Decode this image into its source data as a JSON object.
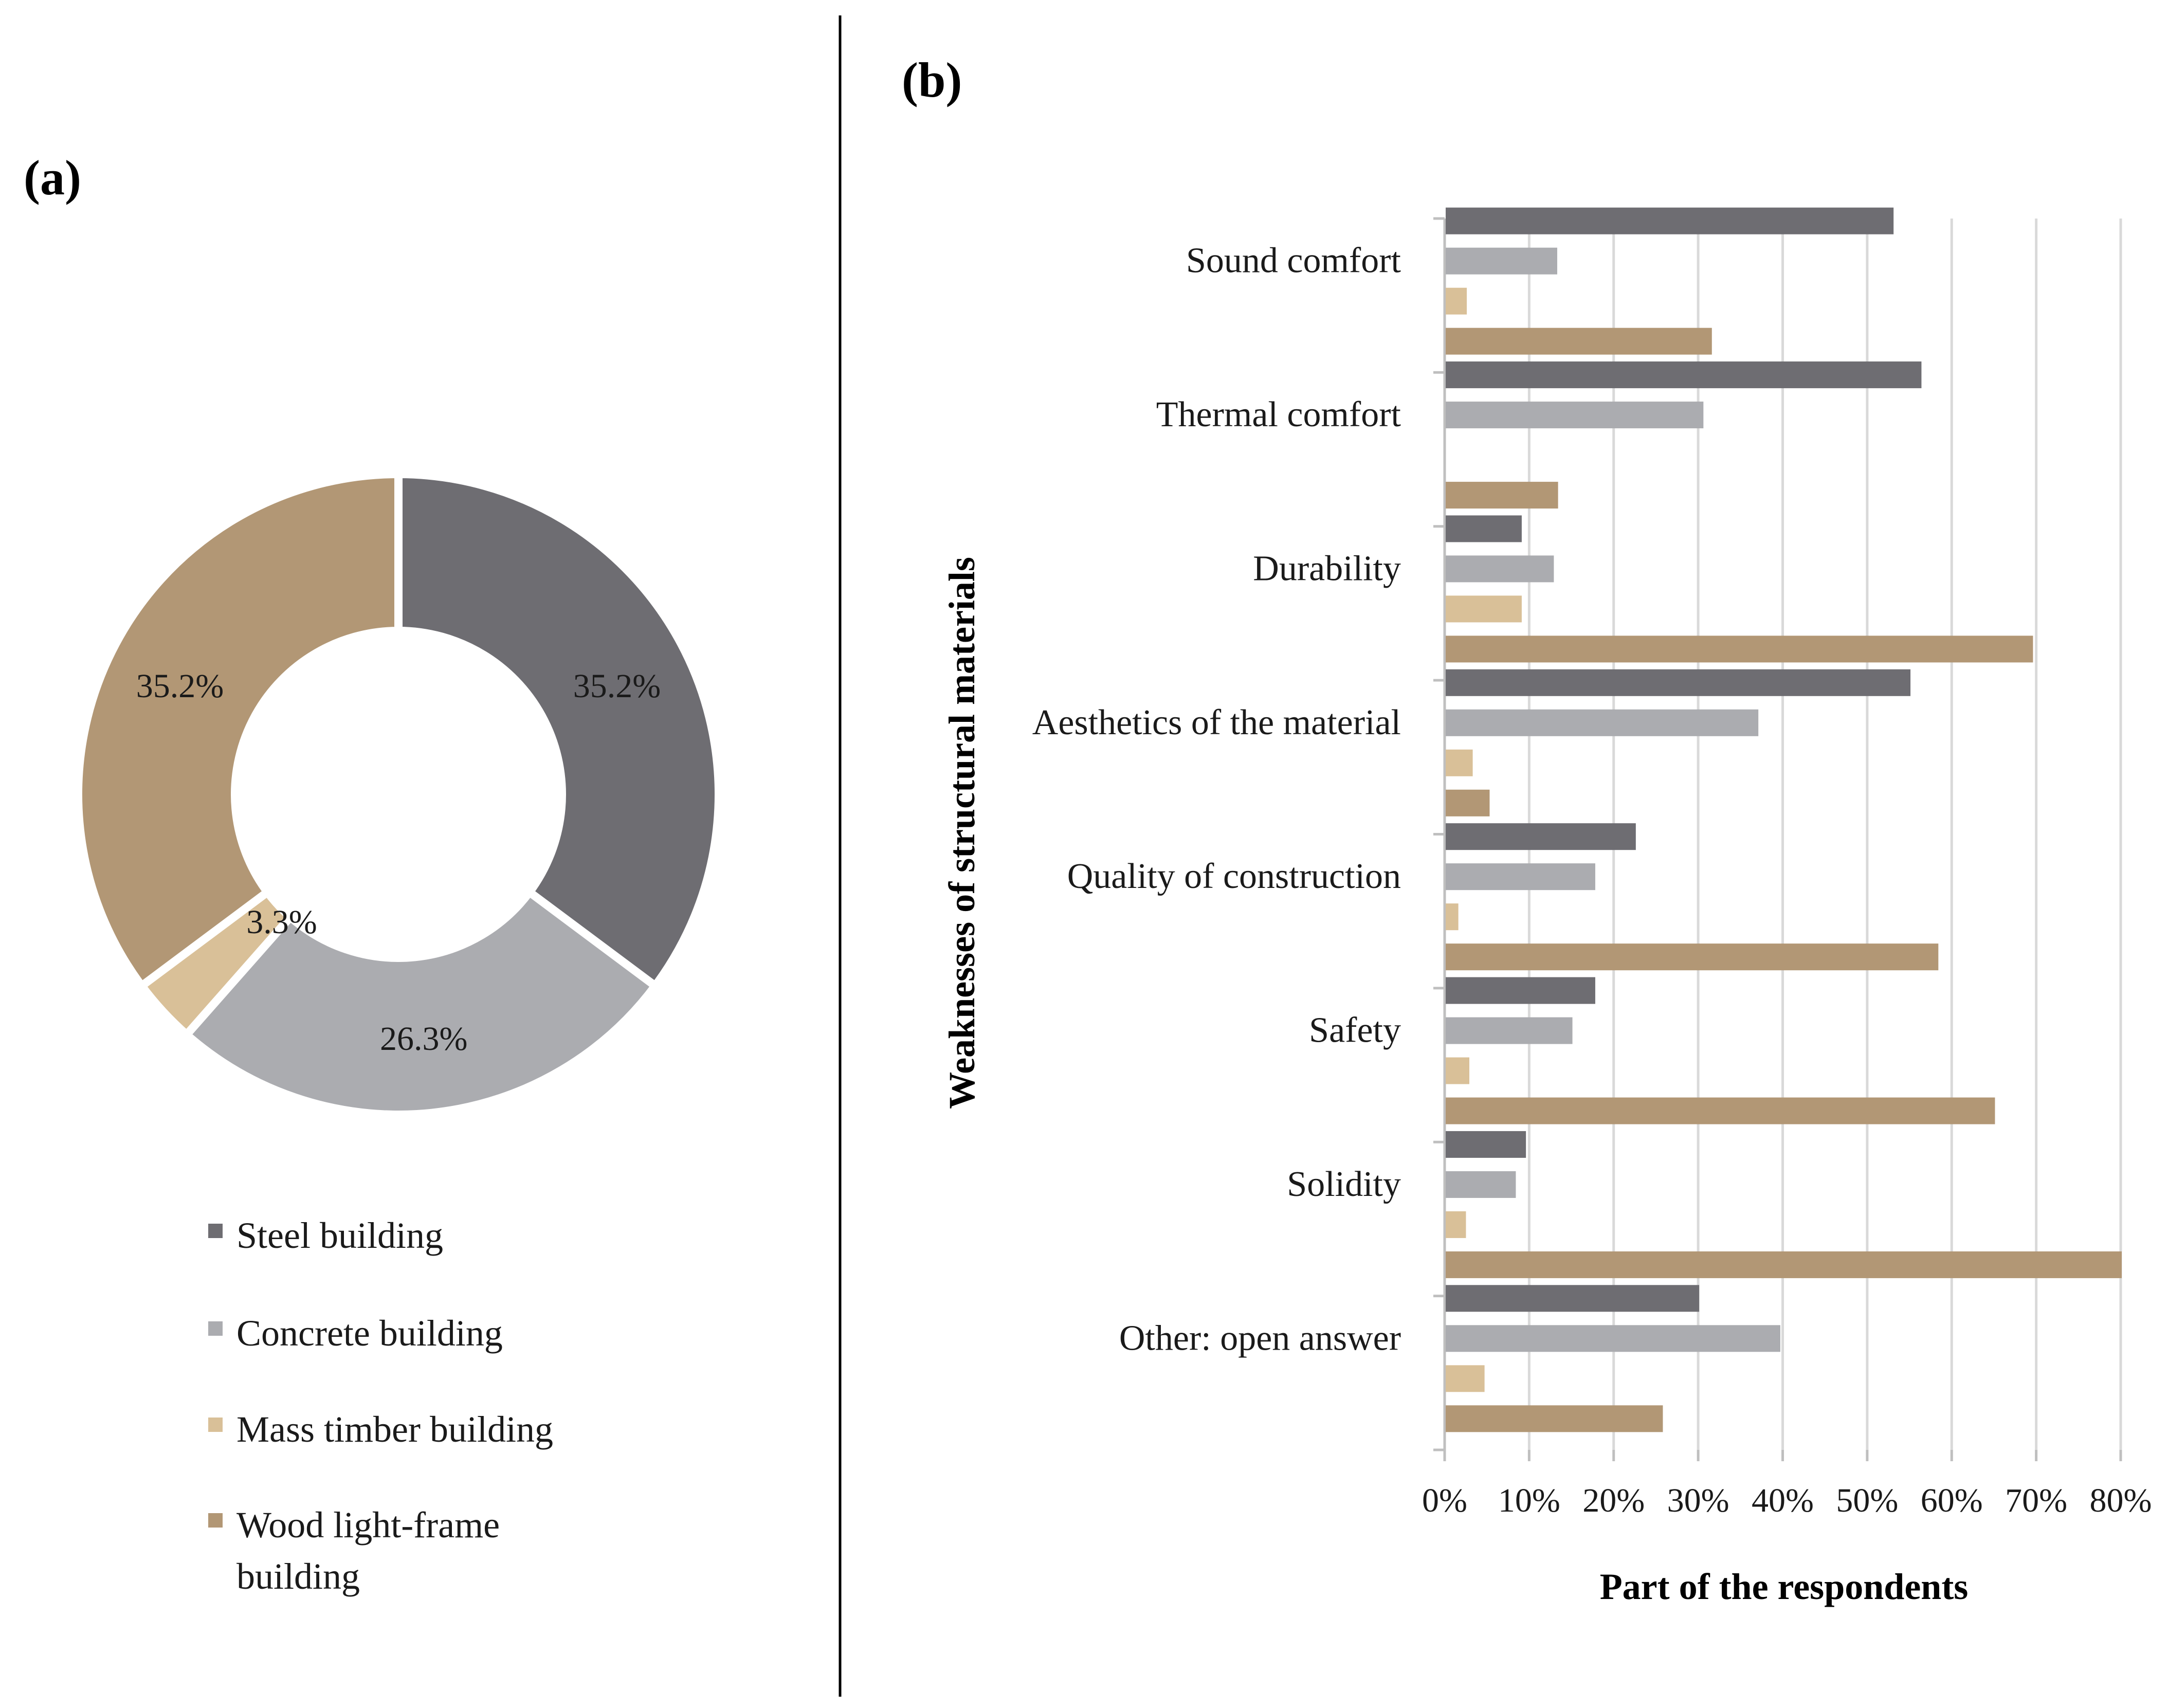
{
  "colors": {
    "steel": "#6e6d72",
    "concrete": "#abacb0",
    "mass_timber": "#d9c098",
    "wood_light_frame": "#b29775",
    "grid": "#d9d9d9",
    "axis": "#bfbfbf",
    "divider": "#000000",
    "text": "#1a1a1a"
  },
  "chart_data": [
    {
      "panel_label": "(a)",
      "type": "pie",
      "donut": true,
      "labels": [
        "Steel building",
        "Concrete building",
        "Mass timber building",
        "Wood light-frame building"
      ],
      "values": [
        35.2,
        26.3,
        3.3,
        35.2
      ],
      "data_labels": [
        "35.2%",
        "26.3%",
        "3.3%",
        "35.2%"
      ],
      "legend": {
        "position": "bottom",
        "entries": [
          {
            "lines": [
              "Steel building"
            ]
          },
          {
            "lines": [
              "Concrete building"
            ]
          },
          {
            "lines": [
              "Mass timber building"
            ]
          },
          {
            "lines": [
              "Wood light-frame",
              "building"
            ]
          }
        ]
      }
    },
    {
      "panel_label": "(b)",
      "type": "bar",
      "orientation": "horizontal",
      "categories": [
        "Sound comfort",
        "Thermal comfort",
        "Durability",
        "Aesthetics of the material",
        "Quality of construction",
        "Safety",
        "Solidity",
        "Other: open answer"
      ],
      "series": [
        {
          "name": "Steel building",
          "values": [
            53,
            56.3,
            9,
            55,
            22.5,
            17.7,
            9.5,
            30
          ]
        },
        {
          "name": "Concrete building",
          "values": [
            13.2,
            30.5,
            12.8,
            37,
            17.7,
            15,
            8.3,
            39.6
          ]
        },
        {
          "name": "Mass timber building",
          "values": [
            2.5,
            0,
            9,
            3.2,
            1.5,
            2.8,
            2.4,
            4.6
          ]
        },
        {
          "name": "Wood light-frame building",
          "values": [
            31.5,
            13.3,
            69.5,
            5.2,
            58.3,
            65,
            80,
            25.7
          ]
        }
      ],
      "xlabel": "Part of the respondents",
      "ylabel": "Weaknesses of structural materials",
      "xlim": [
        0,
        80
      ],
      "xticks": [
        0,
        10,
        20,
        30,
        40,
        50,
        60,
        70,
        80
      ],
      "xtick_labels": [
        "0%",
        "10%",
        "20%",
        "30%",
        "40%",
        "50%",
        "60%",
        "70%",
        "80%"
      ],
      "grid": true
    }
  ]
}
